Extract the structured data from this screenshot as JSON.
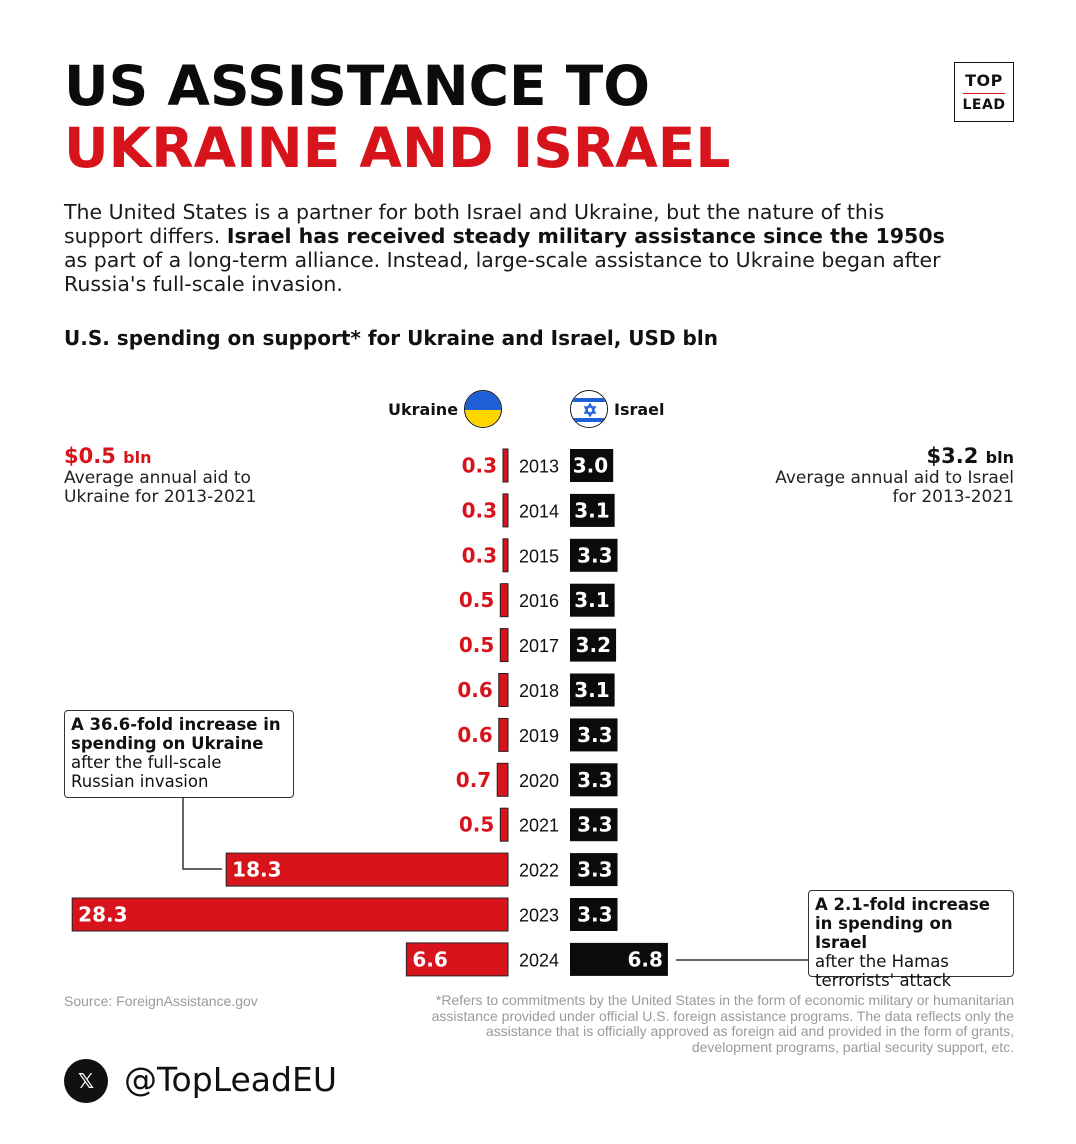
{
  "header": {
    "title_line1": "US ASSISTANCE TO",
    "title_line2": "UKRAINE AND ISRAEL",
    "logo_top": "TOP",
    "logo_bottom": "LEAD"
  },
  "intro": {
    "p1": "The United States is a partner for both Israel and Ukraine, but the nature of this support differs. ",
    "bold": "Israel has received steady military assistance since the 1950s",
    "p2": " as part of a long-term alliance. Instead, large-scale assistance to Ukraine began after Russia's full-scale invasion."
  },
  "legend": {
    "ukraine": "Ukraine",
    "israel": "Israel"
  },
  "averages": {
    "ukraine_value": "$0.5",
    "ukraine_unit": "bln",
    "ukraine_label": "Average annual aid to Ukraine for 2013-2021",
    "israel_value": "$3.2",
    "israel_unit": "bln",
    "israel_label": "Average annual aid to Israel for 2013-2021"
  },
  "callouts": {
    "ukraine_bold": "A 36.6-fold increase in spending on Ukraine",
    "ukraine_text": "after the full-scale Russian invasion",
    "israel_bold": "A 2.1-fold increase in spending on Israel",
    "israel_text": "after the Hamas terrorists' attack"
  },
  "footer": {
    "source": "Source: ForeignAssistance.gov",
    "footnote": "*Refers to commitments by the United States in the form of economic military or humanitarian assistance provided under official U.S. foreign assistance programs. The data reflects only the assistance that is officially approved as foreign aid and provided in the form of grants, development programs, partial security support, etc.",
    "social_icon": "x-logo-icon",
    "handle": "@TopLeadEU"
  },
  "colors": {
    "ukraine": "#d7141c",
    "israel": "#0b0b0b",
    "flag_blue": "#1f5fd6",
    "flag_yellow": "#ffd500"
  },
  "chart_data": {
    "type": "bar",
    "title": "U.S. spending on support* for Ukraine and Israel, USD bln",
    "categories": [
      "2013",
      "2014",
      "2015",
      "2016",
      "2017",
      "2018",
      "2019",
      "2020",
      "2021",
      "2022",
      "2023",
      "2024"
    ],
    "series": [
      {
        "name": "Ukraine",
        "values": [
          0.3,
          0.3,
          0.3,
          0.5,
          0.5,
          0.6,
          0.6,
          0.7,
          0.5,
          18.3,
          28.3,
          6.6
        ]
      },
      {
        "name": "Israel",
        "values": [
          3.0,
          3.1,
          3.3,
          3.1,
          3.2,
          3.1,
          3.3,
          3.3,
          3.3,
          3.3,
          3.3,
          6.8
        ]
      }
    ],
    "labels": {
      "Ukraine": [
        "0.3",
        "0.3",
        "0.3",
        "0.5",
        "0.5",
        "0.6",
        "0.6",
        "0.7",
        "0.5",
        "18.3",
        "28.3",
        "6.6"
      ],
      "Israel": [
        "3.0",
        "3.1",
        "3.3",
        "3.1",
        "3.2",
        "3.1",
        "3.3",
        "3.3",
        "3.3",
        "3.3",
        "3.3",
        "6.8"
      ]
    }
  }
}
